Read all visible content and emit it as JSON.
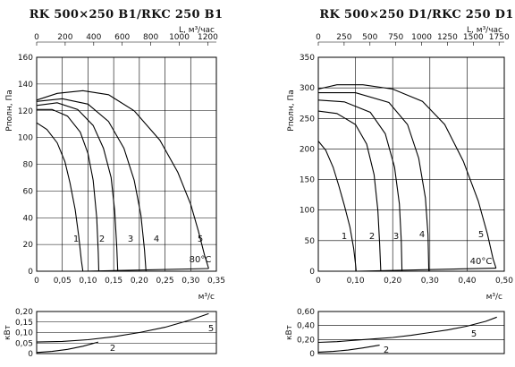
{
  "chart_data": [
    {
      "type": "line",
      "title": "RK 500×250 B1/RKC 250 B1",
      "xlabel": "м³/с",
      "x2label": "L, м³/час",
      "ylabel": "Pполн, Па",
      "xlim": [
        0,
        0.35
      ],
      "xticks": [
        "0",
        "0,05",
        "0,10",
        "0,15",
        "0,20",
        "0,25",
        "0,30",
        "0,35"
      ],
      "x2lim": [
        0,
        1260
      ],
      "x2ticks": [
        "0",
        "200",
        "400",
        "600",
        "800",
        "1000",
        "1200"
      ],
      "ylim": [
        0,
        160
      ],
      "yticks": [
        "0",
        "20",
        "40",
        "60",
        "80",
        "100",
        "120",
        "140",
        "160"
      ],
      "annotation": "80°C",
      "grid": true,
      "series": [
        {
          "name": "1",
          "x": [
            0,
            0.02,
            0.04,
            0.055,
            0.065,
            0.075,
            0.082,
            0.087,
            0.09
          ],
          "y": [
            111,
            106,
            96,
            82,
            66,
            46,
            26,
            8,
            0
          ]
        },
        {
          "name": "2",
          "x": [
            0,
            0.03,
            0.06,
            0.085,
            0.1,
            0.11,
            0.117,
            0.12,
            0.121
          ],
          "y": [
            121,
            121,
            116,
            104,
            88,
            68,
            40,
            14,
            0
          ]
        },
        {
          "name": "3",
          "x": [
            0,
            0.04,
            0.08,
            0.11,
            0.13,
            0.145,
            0.152,
            0.156,
            0.158
          ],
          "y": [
            124,
            126,
            121,
            109,
            92,
            70,
            45,
            18,
            0
          ]
        },
        {
          "name": "4",
          "x": [
            0,
            0.05,
            0.1,
            0.14,
            0.17,
            0.19,
            0.203,
            0.21,
            0.213
          ],
          "y": [
            127,
            129,
            125,
            112,
            92,
            68,
            42,
            16,
            0
          ]
        },
        {
          "name": "5",
          "x": [
            0,
            0.04,
            0.09,
            0.14,
            0.19,
            0.24,
            0.275,
            0.3,
            0.315,
            0.327,
            0.335
          ],
          "y": [
            128,
            133,
            135,
            132,
            120,
            98,
            74,
            50,
            30,
            12,
            2
          ]
        }
      ],
      "floor_line": {
        "x": [
          0.09,
          0.335
        ],
        "y": [
          0,
          2
        ]
      }
    },
    {
      "type": "line",
      "title": "",
      "ylabel": "кВт",
      "xlim": [
        0,
        0.35
      ],
      "ylim": [
        0,
        0.2
      ],
      "yticks": [
        "0",
        "0,05",
        "0,10",
        "0,15",
        "0,20"
      ],
      "grid": true,
      "series": [
        {
          "name": "5",
          "x": [
            0,
            0.05,
            0.1,
            0.15,
            0.2,
            0.25,
            0.3,
            0.335
          ],
          "y": [
            0.055,
            0.058,
            0.066,
            0.08,
            0.1,
            0.125,
            0.16,
            0.19
          ]
        },
        {
          "name": "2",
          "x": [
            0,
            0.03,
            0.06,
            0.09,
            0.12
          ],
          "y": [
            0.005,
            0.01,
            0.02,
            0.035,
            0.055
          ]
        }
      ]
    },
    {
      "type": "line",
      "title": "RK 500×250 D1/RKC 250 D1",
      "xlabel": "м³/с",
      "x2label": "L, м³/час",
      "ylabel": "Pполн, Па",
      "xlim": [
        0,
        0.5
      ],
      "xticks": [
        "0",
        "0,10",
        "0,20",
        "0,30",
        "0,40",
        "0,50"
      ],
      "x2lim": [
        0,
        1800
      ],
      "x2ticks": [
        "0",
        "250",
        "500",
        "750",
        "1000",
        "1250",
        "1500",
        "1750"
      ],
      "ylim": [
        0,
        350
      ],
      "yticks": [
        "0",
        "50",
        "100",
        "150",
        "200",
        "250",
        "300",
        "350"
      ],
      "annotation": "40°C",
      "grid": true,
      "series": [
        {
          "name": "1",
          "x": [
            0,
            0.02,
            0.04,
            0.055,
            0.07,
            0.085,
            0.095,
            0.1,
            0.102
          ],
          "y": [
            213,
            198,
            170,
            140,
            108,
            72,
            38,
            12,
            0
          ]
        },
        {
          "name": "2",
          "x": [
            0,
            0.05,
            0.1,
            0.13,
            0.15,
            0.16,
            0.165,
            0.168
          ],
          "y": [
            262,
            258,
            240,
            208,
            158,
            100,
            45,
            0
          ]
        },
        {
          "name": "3",
          "x": [
            0,
            0.07,
            0.14,
            0.18,
            0.205,
            0.218,
            0.223,
            0.225
          ],
          "y": [
            280,
            277,
            260,
            225,
            170,
            110,
            50,
            0
          ]
        },
        {
          "name": "4",
          "x": [
            0,
            0.1,
            0.19,
            0.24,
            0.27,
            0.288,
            0.295,
            0.297
          ],
          "y": [
            292,
            292,
            276,
            240,
            185,
            120,
            60,
            0
          ]
        },
        {
          "name": "5",
          "x": [
            0,
            0.05,
            0.12,
            0.2,
            0.28,
            0.34,
            0.39,
            0.43,
            0.455,
            0.47,
            0.478
          ],
          "y": [
            298,
            305,
            305,
            298,
            278,
            240,
            180,
            115,
            60,
            20,
            5
          ]
        }
      ],
      "floor_line": {
        "x": [
          0.102,
          0.478
        ],
        "y": [
          0,
          5
        ]
      }
    },
    {
      "type": "line",
      "title": "",
      "ylabel": "кВт",
      "xlim": [
        0,
        0.5
      ],
      "ylim": [
        0,
        0.6
      ],
      "yticks": [
        "0",
        "0,20",
        "0,40",
        "0,60"
      ],
      "grid": true,
      "series": [
        {
          "name": "5",
          "x": [
            0,
            0.05,
            0.1,
            0.15,
            0.2,
            0.25,
            0.3,
            0.35,
            0.4,
            0.45,
            0.48
          ],
          "y": [
            0.16,
            0.17,
            0.19,
            0.21,
            0.23,
            0.26,
            0.3,
            0.34,
            0.39,
            0.46,
            0.52
          ]
        },
        {
          "name": "2",
          "x": [
            0,
            0.04,
            0.08,
            0.12,
            0.165
          ],
          "y": [
            0.02,
            0.03,
            0.05,
            0.08,
            0.12
          ]
        }
      ]
    }
  ]
}
